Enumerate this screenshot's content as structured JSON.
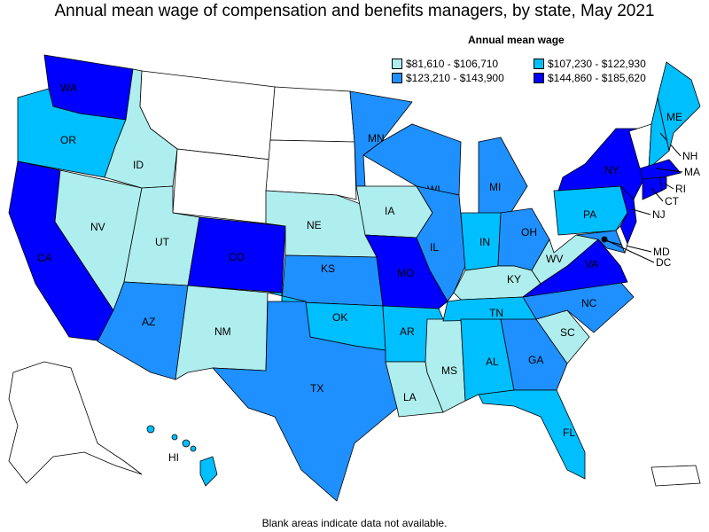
{
  "title": "Annual mean wage of compensation and benefits managers, by state, May 2021",
  "legend": {
    "title": "Annual mean wage",
    "items": [
      {
        "label": "$81,610 - $106,710",
        "color": "#AFEEEE"
      },
      {
        "label": "$107,230 - $122,930",
        "color": "#00BFFF"
      },
      {
        "label": "$123,210 - $143,900",
        "color": "#1E90FF"
      },
      {
        "label": "$144,860 - $185,620",
        "color": "#0000FF"
      }
    ]
  },
  "footnote": "Blank areas indicate data not available.",
  "states": [
    {
      "code": "WA",
      "tier": 3
    },
    {
      "code": "OR",
      "tier": 1
    },
    {
      "code": "CA",
      "tier": 3
    },
    {
      "code": "NV",
      "tier": 0
    },
    {
      "code": "ID",
      "tier": 0
    },
    {
      "code": "MT",
      "tier": -1
    },
    {
      "code": "WY",
      "tier": -1
    },
    {
      "code": "UT",
      "tier": 0
    },
    {
      "code": "AZ",
      "tier": 2
    },
    {
      "code": "CO",
      "tier": 3
    },
    {
      "code": "NM",
      "tier": 0
    },
    {
      "code": "ND",
      "tier": -1
    },
    {
      "code": "SD",
      "tier": -1
    },
    {
      "code": "NE",
      "tier": 0
    },
    {
      "code": "KS",
      "tier": 2
    },
    {
      "code": "OK",
      "tier": 1
    },
    {
      "code": "TX",
      "tier": 2
    },
    {
      "code": "MN",
      "tier": 2
    },
    {
      "code": "IA",
      "tier": 0
    },
    {
      "code": "MO",
      "tier": 3
    },
    {
      "code": "AR",
      "tier": 1
    },
    {
      "code": "LA",
      "tier": 0
    },
    {
      "code": "MS",
      "tier": 0
    },
    {
      "code": "WI",
      "tier": 2
    },
    {
      "code": "IL",
      "tier": 2
    },
    {
      "code": "MI",
      "tier": 2
    },
    {
      "code": "IN",
      "tier": 1
    },
    {
      "code": "OH",
      "tier": 2
    },
    {
      "code": "KY",
      "tier": 0
    },
    {
      "code": "TN",
      "tier": 1
    },
    {
      "code": "AL",
      "tier": 1
    },
    {
      "code": "GA",
      "tier": 2
    },
    {
      "code": "FL",
      "tier": 1
    },
    {
      "code": "SC",
      "tier": 0
    },
    {
      "code": "NC",
      "tier": 2
    },
    {
      "code": "VA",
      "tier": 3
    },
    {
      "code": "WV",
      "tier": 0
    },
    {
      "code": "PA",
      "tier": 1
    },
    {
      "code": "NY",
      "tier": 3
    },
    {
      "code": "NJ",
      "tier": 3
    },
    {
      "code": "MD",
      "tier": 2
    },
    {
      "code": "DE",
      "tier": -1
    },
    {
      "code": "VT",
      "tier": -1
    },
    {
      "code": "NH",
      "tier": 1
    },
    {
      "code": "ME",
      "tier": 1
    },
    {
      "code": "MA",
      "tier": 3
    },
    {
      "code": "CT",
      "tier": 3
    },
    {
      "code": "RI",
      "tier": 3
    },
    {
      "code": "DC",
      "tier": 3
    },
    {
      "code": "HI",
      "tier": 1
    },
    {
      "code": "AK",
      "tier": -1
    },
    {
      "code": "PR",
      "tier": -1
    }
  ]
}
